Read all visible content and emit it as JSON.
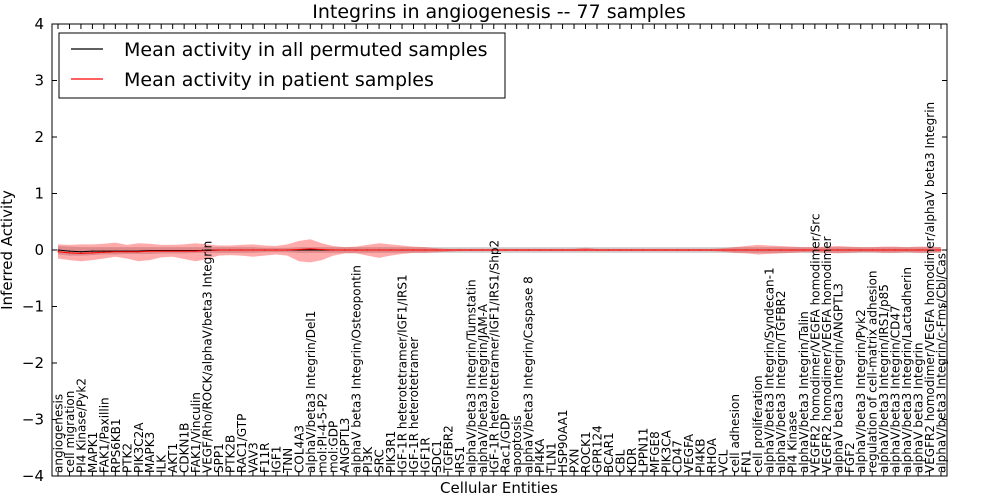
{
  "chart_data": {
    "type": "line",
    "title": "Integrins in angiogenesis -- 77 samples",
    "xlabel": "Cellular Entities",
    "ylabel": "Inferred Activity",
    "ylim": [
      -4,
      4
    ],
    "yticks": [
      -4,
      -3,
      -2,
      -1,
      0,
      1,
      2,
      3,
      4
    ],
    "ytick_labels": [
      "−4",
      "−3",
      "−2",
      "−1",
      "0",
      "1",
      "2",
      "3",
      "4"
    ],
    "grid": false,
    "legend_position": "top-left",
    "categories": [
      "angiogenesis",
      "cell migration",
      "PI4 Kinase/Pyk2",
      "MAPK1",
      "FAK1/Paxillin",
      "RPS6KB1",
      "PTK2",
      "PIK3C2A",
      "MAPK3",
      "ILK",
      "AKT1",
      "CDKN1B",
      "FAK1/Vinculin",
      "VEGF/Rho/ROCK/alphaV/beta3 Integrin",
      "SPP1",
      "PTK2B",
      "RAC1/GTP",
      "VAV3",
      "F11R",
      "IGF1",
      "TNN",
      "COL4A3",
      "alphaV/beta3 Integrin/Del1",
      "mol:PI-4-5-P2",
      "mol:GDP",
      "ANGPTL3",
      "alphaV beta3 Integrin/Osteopontin",
      "PI3K",
      "SRC",
      "PIK3R1",
      "IGF-1R heterotetramer/IGF1/IRS1",
      "IGF-1R heterotetramer",
      "IGF1R",
      "SDC1",
      "TGFBR2",
      "IRS1",
      "alphaV/beta3 Integrin/Tumstatin",
      "alphaV/beta3 Integrin/JAM-A",
      "IGF-1R heterotetramer/IGF1/IRS1/Shp2",
      "Rac1/GDP",
      "apoptosis",
      "alphaV/beta3 Integrin/Caspase 8",
      "PI4KA",
      "TLN1",
      "HSP90AA1",
      "PXN",
      "ROCK1",
      "GPR124",
      "BCAR1",
      "CBL",
      "KDR",
      "LPPN11",
      "MFGE8",
      "PIK3CA",
      "CD47",
      "VEGFA",
      "PI4KB",
      "RHOA",
      "VCL",
      "cell adhesion",
      "FN1",
      "cell proliferation",
      "alphaV/beta3 Integrin/Syndecan-1",
      "alphaV/beta3 Integrin/TGFBR2",
      "PI4 Kinase",
      "alphaV/beta3 Integrin/Talin",
      "VEGFR2 homodimer/VEGFA homodimer/Src",
      "VEGFR2 homodimer/VEGFA homodimer",
      "alphaV beta3 Integrin/ANGPTL3",
      "FGF2",
      "alphaV/beta3 Integrin/Pyk2",
      "regulation of cell-matrix adhesion",
      "alphaV/beta3 Integrin/IRS1/p85",
      "alphaV/beta3 Integrin/CD47",
      "alphaV/beta3 Integrin/Lactadherin",
      "alphaV beta3 Integrin",
      "VEGFR2 homodimer/VEGFA homodimer/alphaV beta3 Integrin",
      "alphaV/beta3 Integrin/c-Fms/Cbl/Cas"
    ],
    "series": [
      {
        "name": "Mean activity in all permuted samples",
        "color": "#000000",
        "values": [
          0.0,
          -0.02,
          -0.03,
          -0.02,
          -0.02,
          -0.02,
          -0.02,
          -0.02,
          -0.01,
          -0.01,
          -0.01,
          -0.01,
          -0.01,
          -0.01,
          0.0,
          0.0,
          0.0,
          0.0,
          0.0,
          0.0,
          0.0,
          0.0,
          0.0,
          0.0,
          0.0,
          0.0,
          0.0,
          0.0,
          0.0,
          0.0,
          0.0,
          0.0,
          0.0,
          0.0,
          0.0,
          0.0,
          0.0,
          0.0,
          0.0,
          0.0,
          0.0,
          0.0,
          0.0,
          0.0,
          0.0,
          0.0,
          0.0,
          0.0,
          0.0,
          0.0,
          0.0,
          0.0,
          0.0,
          0.0,
          0.0,
          0.0,
          0.0,
          0.0,
          0.0,
          0.0,
          0.0,
          0.0,
          0.0,
          0.0,
          0.0,
          0.0,
          0.0,
          0.0,
          0.0,
          0.0,
          0.0,
          0.0,
          0.0,
          0.0,
          0.0,
          0.0,
          0.0,
          0.0
        ]
      },
      {
        "name": "Mean activity in patient samples",
        "color": "#ff0000",
        "values": [
          -0.03,
          -0.05,
          -0.06,
          -0.05,
          -0.04,
          -0.03,
          -0.03,
          -0.03,
          -0.02,
          -0.02,
          -0.02,
          -0.02,
          -0.02,
          -0.01,
          0.0,
          0.0,
          0.0,
          0.0,
          0.0,
          0.0,
          0.0,
          0.01,
          0.02,
          0.01,
          0.0,
          0.0,
          0.0,
          0.0,
          0.0,
          0.0,
          0.0,
          0.0,
          0.0,
          0.0,
          0.0,
          0.0,
          0.0,
          0.0,
          0.0,
          0.0,
          0.0,
          0.0,
          0.0,
          0.0,
          0.0,
          0.0,
          0.0,
          0.0,
          0.0,
          0.0,
          0.0,
          0.0,
          0.0,
          0.0,
          0.0,
          0.0,
          0.0,
          0.0,
          0.0,
          0.0,
          0.0,
          0.0,
          0.0,
          0.0,
          0.0,
          0.0,
          0.0,
          0.0,
          0.0,
          0.0,
          0.0,
          0.0,
          0.0,
          0.0,
          0.0,
          0.0,
          0.0,
          0.0
        ]
      }
    ],
    "bands": [
      {
        "name": "permuted spread",
        "color": "#d0d0d0",
        "lower": [
          -0.08,
          -0.1,
          -0.1,
          -0.09,
          -0.08,
          -0.08,
          -0.07,
          -0.07,
          -0.07,
          -0.06,
          -0.06,
          -0.06,
          -0.05,
          -0.05,
          -0.05,
          -0.05,
          -0.05,
          -0.05,
          -0.04,
          -0.04,
          -0.04,
          -0.05,
          -0.05,
          -0.05,
          -0.05,
          -0.05,
          -0.05,
          -0.05,
          -0.05,
          -0.05,
          -0.05,
          -0.05,
          -0.05,
          -0.05,
          -0.05,
          -0.05,
          -0.05,
          -0.05,
          -0.05,
          -0.05,
          -0.05,
          -0.05,
          -0.05,
          -0.05,
          -0.05,
          -0.05,
          -0.05,
          -0.05,
          -0.05,
          -0.05,
          -0.05,
          -0.05,
          -0.05,
          -0.05,
          -0.05,
          -0.05,
          -0.05,
          -0.05,
          -0.05,
          -0.05,
          -0.05,
          -0.05,
          -0.05,
          -0.05,
          -0.05,
          -0.05,
          -0.05,
          -0.05,
          -0.05,
          -0.05,
          -0.05,
          -0.05,
          -0.05,
          -0.05,
          -0.05,
          -0.05,
          -0.05,
          -0.05
        ],
        "upper": [
          0.07,
          0.06,
          0.05,
          0.05,
          0.05,
          0.05,
          0.05,
          0.05,
          0.05,
          0.05,
          0.05,
          0.05,
          0.05,
          0.05,
          0.05,
          0.05,
          0.05,
          0.05,
          0.04,
          0.04,
          0.04,
          0.05,
          0.05,
          0.05,
          0.05,
          0.05,
          0.05,
          0.05,
          0.05,
          0.05,
          0.05,
          0.05,
          0.05,
          0.05,
          0.05,
          0.05,
          0.05,
          0.05,
          0.05,
          0.05,
          0.05,
          0.05,
          0.05,
          0.05,
          0.05,
          0.05,
          0.05,
          0.05,
          0.05,
          0.05,
          0.05,
          0.05,
          0.05,
          0.05,
          0.05,
          0.05,
          0.05,
          0.05,
          0.05,
          0.05,
          0.05,
          0.05,
          0.05,
          0.05,
          0.05,
          0.05,
          0.05,
          0.05,
          0.05,
          0.05,
          0.05,
          0.05,
          0.05,
          0.05,
          0.05,
          0.05,
          0.05,
          0.05
        ]
      },
      {
        "name": "patient spread",
        "color": "#ff0000",
        "opacity": 0.33,
        "lower": [
          -0.15,
          -0.18,
          -0.2,
          -0.18,
          -0.15,
          -0.12,
          -0.15,
          -0.2,
          -0.18,
          -0.13,
          -0.12,
          -0.16,
          -0.2,
          -0.16,
          -0.1,
          -0.09,
          -0.1,
          -0.12,
          -0.1,
          -0.08,
          -0.1,
          -0.2,
          -0.22,
          -0.18,
          -0.1,
          -0.06,
          -0.06,
          -0.1,
          -0.14,
          -0.1,
          -0.07,
          -0.05,
          -0.05,
          -0.04,
          -0.03,
          -0.02,
          -0.02,
          -0.02,
          -0.02,
          -0.02,
          -0.02,
          -0.02,
          -0.02,
          -0.02,
          -0.02,
          -0.02,
          -0.02,
          -0.02,
          -0.02,
          -0.02,
          -0.02,
          -0.02,
          -0.02,
          -0.02,
          -0.02,
          -0.02,
          -0.02,
          -0.02,
          -0.03,
          -0.05,
          -0.06,
          -0.08,
          -0.07,
          -0.06,
          -0.05,
          -0.04,
          -0.04,
          -0.05,
          -0.06,
          -0.05,
          -0.04,
          -0.04,
          -0.05,
          -0.05,
          -0.04,
          -0.05,
          -0.05,
          -0.04
        ],
        "upper": [
          0.1,
          0.09,
          0.1,
          0.1,
          0.11,
          0.13,
          0.09,
          0.12,
          0.11,
          0.09,
          0.09,
          0.1,
          0.12,
          0.1,
          0.08,
          0.08,
          0.09,
          0.1,
          0.08,
          0.07,
          0.1,
          0.16,
          0.19,
          0.12,
          0.07,
          0.05,
          0.06,
          0.09,
          0.12,
          0.1,
          0.08,
          0.06,
          0.05,
          0.03,
          0.02,
          0.02,
          0.02,
          0.02,
          0.02,
          0.02,
          0.02,
          0.02,
          0.02,
          0.02,
          0.02,
          0.02,
          0.04,
          0.02,
          0.02,
          0.02,
          0.02,
          0.02,
          0.02,
          0.02,
          0.02,
          0.02,
          0.02,
          0.02,
          0.03,
          0.05,
          0.07,
          0.09,
          0.08,
          0.07,
          0.06,
          0.05,
          0.05,
          0.06,
          0.07,
          0.06,
          0.05,
          0.05,
          0.06,
          0.06,
          0.05,
          0.06,
          0.06,
          0.05
        ]
      }
    ]
  }
}
